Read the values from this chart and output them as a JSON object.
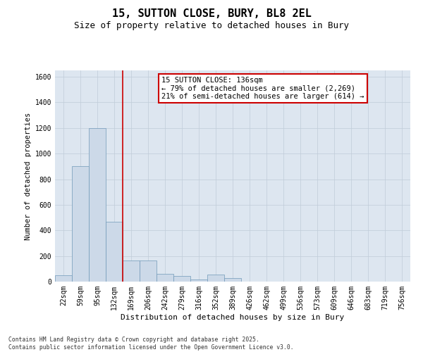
{
  "title": "15, SUTTON CLOSE, BURY, BL8 2EL",
  "subtitle": "Size of property relative to detached houses in Bury",
  "xlabel": "Distribution of detached houses by size in Bury",
  "ylabel": "Number of detached properties",
  "bin_labels": [
    "22sqm",
    "59sqm",
    "95sqm",
    "132sqm",
    "169sqm",
    "206sqm",
    "242sqm",
    "279sqm",
    "316sqm",
    "352sqm",
    "389sqm",
    "426sqm",
    "462sqm",
    "499sqm",
    "536sqm",
    "573sqm",
    "609sqm",
    "646sqm",
    "683sqm",
    "719sqm",
    "756sqm"
  ],
  "bar_heights": [
    50,
    900,
    1200,
    470,
    165,
    165,
    60,
    45,
    15,
    55,
    30,
    0,
    0,
    0,
    0,
    0,
    0,
    0,
    0,
    0,
    0
  ],
  "bar_color": "#ccd9e8",
  "bar_edge_color": "#7099b8",
  "property_line_x": 3.5,
  "property_line_color": "#cc0000",
  "annotation_text": "15 SUTTON CLOSE: 136sqm\n← 79% of detached houses are smaller (2,269)\n21% of semi-detached houses are larger (614) →",
  "annotation_box_color": "#cc0000",
  "annotation_text_color": "#000000",
  "ylim": [
    0,
    1650
  ],
  "yticks": [
    0,
    200,
    400,
    600,
    800,
    1000,
    1200,
    1400,
    1600
  ],
  "grid_color": "#c0ccd8",
  "background_color": "#dde6f0",
  "figure_background": "#ffffff",
  "footer_line1": "Contains HM Land Registry data © Crown copyright and database right 2025.",
  "footer_line2": "Contains public sector information licensed under the Open Government Licence v3.0.",
  "title_fontsize": 11,
  "subtitle_fontsize": 9,
  "tick_fontsize": 7,
  "ylabel_fontsize": 7.5,
  "xlabel_fontsize": 8,
  "bar_width": 1.0,
  "annotation_fontsize": 7.5
}
